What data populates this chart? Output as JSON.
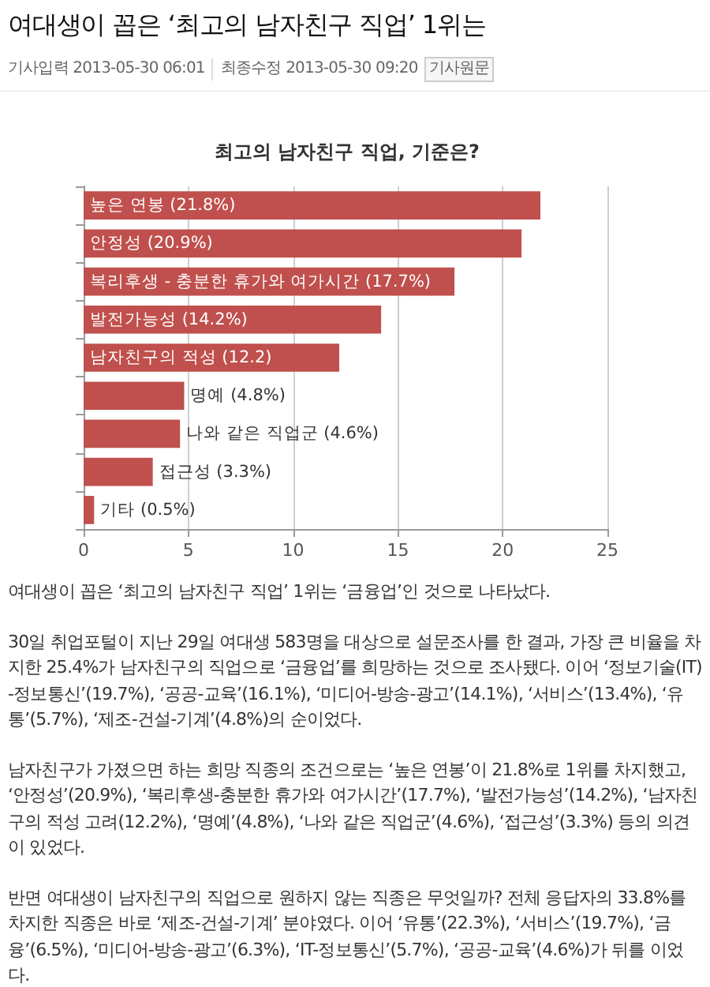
{
  "chart_data": {
    "type": "bar",
    "orientation": "horizontal",
    "title": "여대생이 꼽은 ‘최고의 남자친구 직업’ 1위는",
    "subtitle": "최고의 남자친구 직업, 기준은?",
    "categories": [
      "높은 연봉 (21.8%)",
      "안정성 (20.9%)",
      "복리후생 - 충분한 휴가와 여가시간 (17.7%)",
      "발전가능성 (14.2%)",
      "남자친구의 적성 (12.2)",
      "명예 (4.8%)",
      "나와 같은 직업군 (4.6%)",
      "접근성 (3.3%)",
      "기타 (0.5%)"
    ],
    "values": [
      21.8,
      20.9,
      17.7,
      14.2,
      12.2,
      4.8,
      4.6,
      3.3,
      0.5
    ],
    "color": "#c0504d",
    "xlim": [
      0,
      25
    ],
    "xticks": [
      0,
      5,
      10,
      15,
      20,
      25
    ],
    "grid": "x",
    "annotations": [
      "기사입력 2013-05-30 06:01",
      "최종수정 2013-05-30 09:20",
      "기사원문",
      "여대생이 꼽은 ‘최고의 남자친구 직업’ 1위는 ‘금융업’인 것으로 나타났다.",
      "30일 취업포털이 지난 29일 여대생 583명을 대상으로 설문조사를 한 결과, 가장 큰 비율을 차지한 25.4%가 남자친구의 직업으로 ‘금융업’를 희망하는 것으로 조사됐다. 이어 ‘정보기술(IT)-정보통신’(19.7%), ‘공공-교육’(16.1%), ‘미디어-방송-광고’(14.1%), ‘서비스’(13.4%), ‘유통’(5.7%), ‘제조-건설-기계’(4.8%)의 순이었다.",
      "남자친구가 가졌으면 하는 희망 직종의 조건으로는 ‘높은 연봉’이 21.8%로 1위를 차지했고, ‘안정성’(20.9%), ‘복리후생-충분한 휴가와 여가시간’(17.7%), ‘발전가능성’(14.2%), ‘남자친구의 적성 고려(12.2%), ‘명예’(4.8%), ‘나와 같은 직업군’(4.6%), ‘접근성’(3.3%) 등의 의견이 있었다.",
      "반면 여대생이 남자친구의 직업으로 원하지 않는 직종은 무엇일까? 전체 응답자의 33.8%를 차지한 직종은 바로 ‘제조-건설-기계’ 분야였다. 이어 ‘유통’(22.3%), ‘서비스’(19.7%), ‘금융’(6.5%), ‘미디어-방송-광고’(6.3%), ‘IT-정보통신’(5.7%), ‘공공-교육’(4.6%)가 뒤를 이었다."
    ]
  }
}
